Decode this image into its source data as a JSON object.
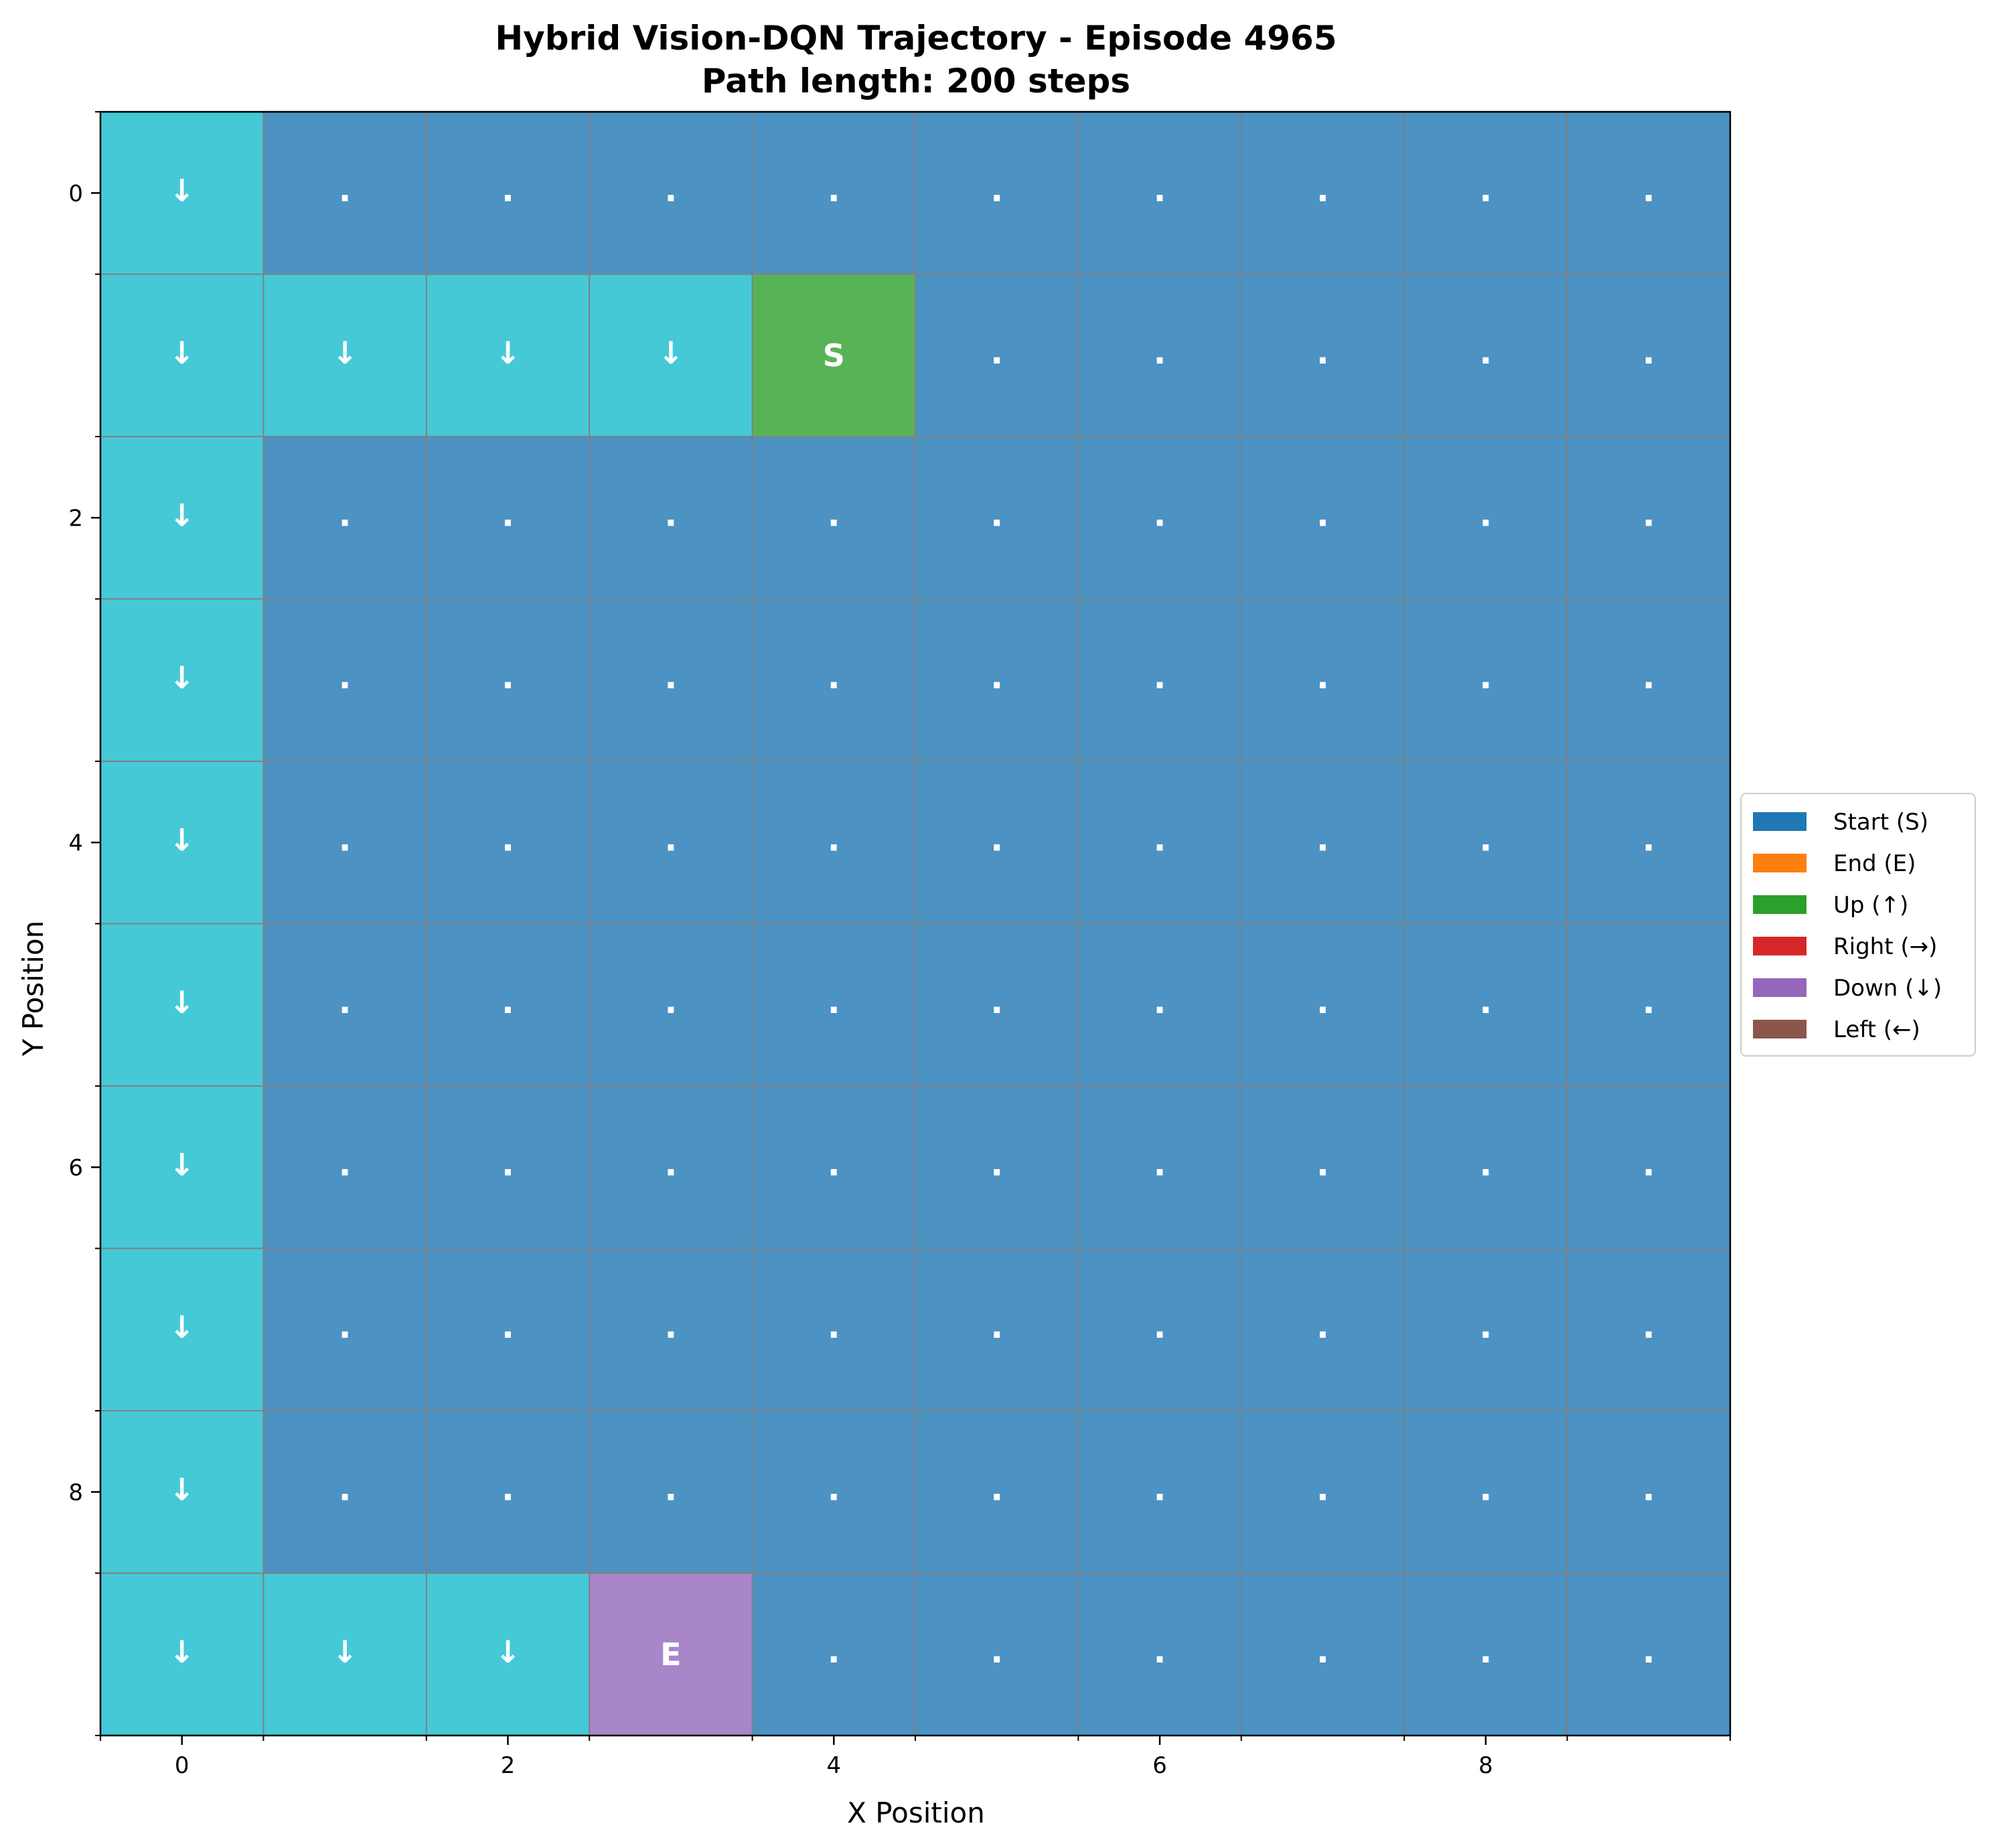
{
  "chart_data": {
    "type": "heatmap",
    "title": "Hybrid Vision-DQN Trajectory - Episode 4965",
    "subtitle": "Path length: 200 steps",
    "xlabel": "X Position",
    "ylabel": "Y Position",
    "xlim": [
      -0.5,
      9.5
    ],
    "ylim": [
      9.5,
      -0.5
    ],
    "x_ticks": [
      "0",
      "2",
      "4",
      "6",
      "8"
    ],
    "y_ticks": [
      "0",
      "2",
      "4",
      "6",
      "8"
    ],
    "grid": true,
    "grid_size": [
      10,
      10
    ],
    "cell_codes": {
      "B": {
        "color": "#4c92c3",
        "symbol": "."
      },
      "P": {
        "color": "#45c9d7",
        "symbol": "↓"
      },
      "S": {
        "color": "#58b357",
        "symbol": "S"
      },
      "E": {
        "color": "#a985c9",
        "symbol": "E"
      }
    },
    "cells": [
      [
        "P",
        "B",
        "B",
        "B",
        "B",
        "B",
        "B",
        "B",
        "B",
        "B"
      ],
      [
        "P",
        "P",
        "P",
        "P",
        "S",
        "B",
        "B",
        "B",
        "B",
        "B"
      ],
      [
        "P",
        "B",
        "B",
        "B",
        "B",
        "B",
        "B",
        "B",
        "B",
        "B"
      ],
      [
        "P",
        "B",
        "B",
        "B",
        "B",
        "B",
        "B",
        "B",
        "B",
        "B"
      ],
      [
        "P",
        "B",
        "B",
        "B",
        "B",
        "B",
        "B",
        "B",
        "B",
        "B"
      ],
      [
        "P",
        "B",
        "B",
        "B",
        "B",
        "B",
        "B",
        "B",
        "B",
        "B"
      ],
      [
        "P",
        "B",
        "B",
        "B",
        "B",
        "B",
        "B",
        "B",
        "B",
        "B"
      ],
      [
        "P",
        "B",
        "B",
        "B",
        "B",
        "B",
        "B",
        "B",
        "B",
        "B"
      ],
      [
        "P",
        "B",
        "B",
        "B",
        "B",
        "B",
        "B",
        "B",
        "B",
        "B"
      ],
      [
        "P",
        "P",
        "P",
        "E",
        "B",
        "B",
        "B",
        "B",
        "B",
        "B"
      ]
    ],
    "legend_position": "center-right",
    "legend": [
      {
        "label": "Start (S)",
        "color": "#1f77b4"
      },
      {
        "label": "End (E)",
        "color": "#ff7f0e"
      },
      {
        "label": "Up (↑)",
        "color": "#2ca02c"
      },
      {
        "label": "Right (→)",
        "color": "#d62728"
      },
      {
        "label": "Down (↓)",
        "color": "#9467bd"
      },
      {
        "label": "Left (←)",
        "color": "#8c564b"
      }
    ]
  }
}
